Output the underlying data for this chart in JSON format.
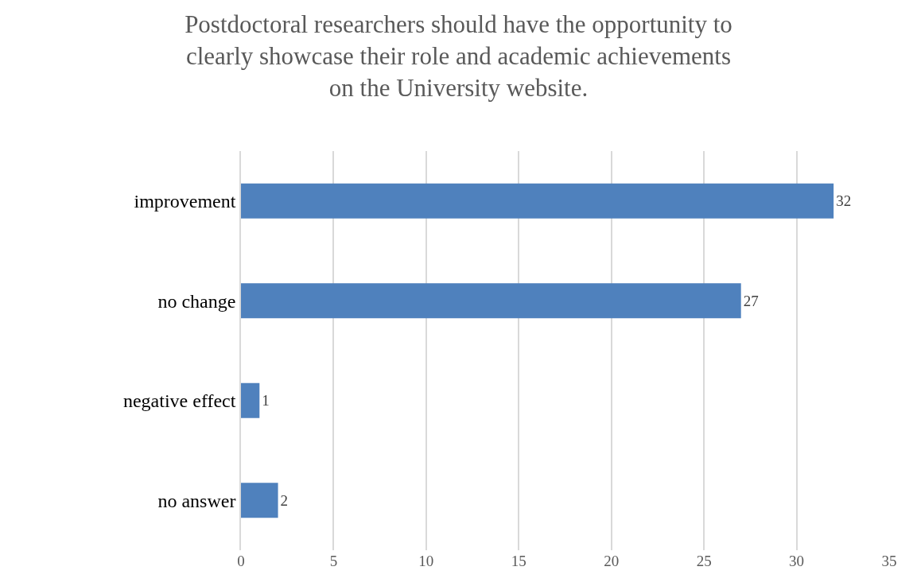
{
  "chart_data": {
    "type": "bar",
    "orientation": "horizontal",
    "title": "Postdoctoral researchers should have the opportunity to\nclearly showcase their role and academic achievements\non the University website.",
    "categories": [
      "improvement",
      "no change",
      "negative effect",
      "no answer"
    ],
    "values": [
      32,
      27,
      1,
      2
    ],
    "color": "#4f81bd",
    "data_labels": true,
    "xlim": [
      0,
      35
    ],
    "xticks": [
      0,
      5,
      10,
      15,
      20,
      25,
      30,
      35
    ],
    "grid": "x"
  }
}
